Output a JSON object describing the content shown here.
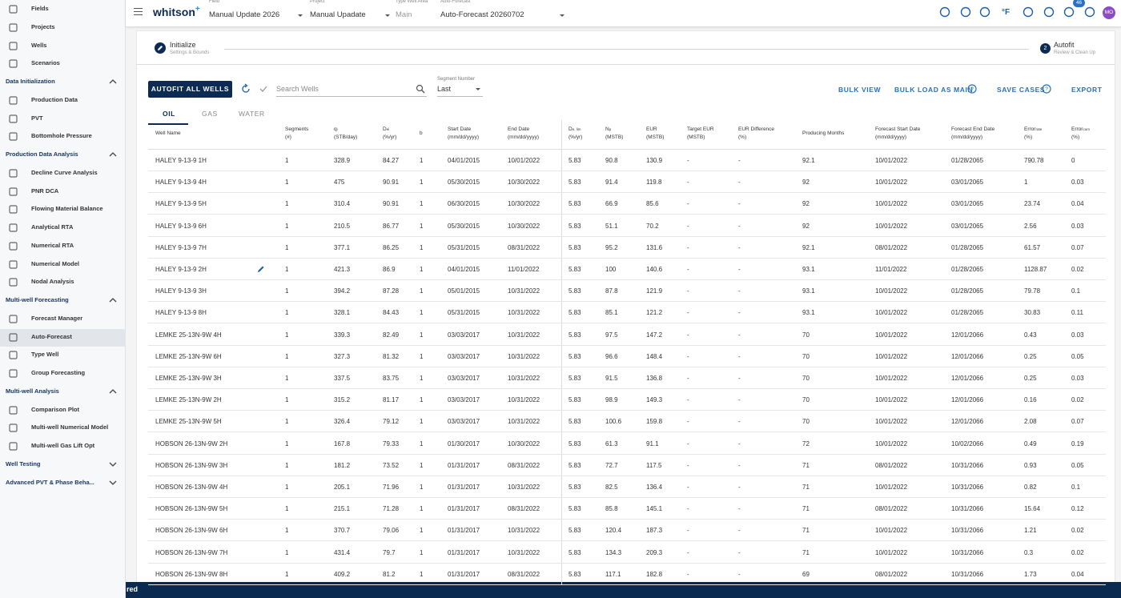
{
  "sidebar": {
    "top": [
      "Fields",
      "Projects",
      "Wells",
      "Scenarios"
    ],
    "sections": [
      {
        "title": "Data Initialization",
        "items": [
          "Production Data",
          "PVT",
          "Bottomhole Pressure"
        ]
      },
      {
        "title": "Production Data Analysis",
        "items": [
          "Decline Curve Analysis",
          "PNR DCA",
          "Flowing Material Balance",
          "Analytical RTA",
          "Numerical RTA",
          "Numerical Model",
          "Nodal Analysis"
        ]
      },
      {
        "title": "Multi-well Forecasting",
        "items": [
          "Forecast Manager",
          "Auto-Forecast",
          "Type Well",
          "Group Forecasting"
        ]
      },
      {
        "title": "Multi-well Analysis",
        "items": [
          "Comparison Plot",
          "Multi-well Numerical Model",
          "Multi-well Gas Lift Opt"
        ]
      },
      {
        "title": "Well Testing",
        "items": []
      },
      {
        "title": "Advanced PVT & Phase Beha...",
        "items": []
      }
    ]
  },
  "topbar": {
    "logo": {
      "name": "whitson",
      "mark": "+"
    },
    "selectors": [
      {
        "label": "Field",
        "value": "Manual Update 2026"
      },
      {
        "label": "Project",
        "value": "Manual Upadate"
      },
      {
        "label": "Type Well Area",
        "value": "Main"
      },
      {
        "label": "Auto-Forecast",
        "value": "Auto-Forecast 20260702"
      }
    ],
    "unit": "°F",
    "notifications": "46",
    "avatar": "MO"
  },
  "stepper": [
    {
      "title": "Initialize",
      "subtitle": "Settings & Bounds"
    },
    {
      "number": "2",
      "title": "Autofit",
      "subtitle": "Review & Clean Up"
    }
  ],
  "toolbar": {
    "autofit_button": "AUTOFIT ALL WELLS",
    "search_placeholder": "Search Wells",
    "segment": {
      "label": "Segment Number",
      "value": "Last"
    },
    "actions": [
      "BULK VIEW",
      "BULK LOAD AS MAIN",
      "SAVE CASES",
      "EXPORT"
    ]
  },
  "tabs": [
    "OIL",
    "GAS",
    "WATER"
  ],
  "table": {
    "columns": [
      {
        "name": "Well Name"
      },
      {
        "name": "Segments",
        "unit": "(#)"
      },
      {
        "name": "q",
        "sub": "i",
        "unit": "(STB/day)"
      },
      {
        "name": "D",
        "sub": "ei",
        "unit": "(%/yr)"
      },
      {
        "name": "b"
      },
      {
        "name": "Start Date",
        "unit": "(mm/dd/yyyy)"
      },
      {
        "name": "End Date",
        "unit": "(mm/dd/yyyy)"
      },
      {
        "name": "D",
        "sub": "e, lim",
        "unit": "(%/yr)"
      },
      {
        "name": "N",
        "sub": "p",
        "unit": "(MSTB)"
      },
      {
        "name": "EUR",
        "unit": "(MSTB)"
      },
      {
        "name": "Target EUR",
        "unit": "(MSTB)"
      },
      {
        "name": "EUR Difference",
        "unit": "(%)"
      },
      {
        "name": "Producing Months"
      },
      {
        "name": "Forecast Start Date",
        "unit": "(mm/dd/yyyy)"
      },
      {
        "name": "Forecast End Date",
        "unit": "(mm/dd/yyyy)"
      },
      {
        "name": "Error",
        "sub": "rate",
        "unit": "(%)"
      },
      {
        "name": "Error",
        "sub": "cum",
        "unit": "(%)"
      }
    ],
    "rows": [
      [
        "HALEY 9-13-9 1H",
        "1",
        "328.9",
        "84.27",
        "1",
        "04/01/2015",
        "10/01/2022",
        "5.83",
        "90.8",
        "130.9",
        "-",
        "-",
        "92.1",
        "10/01/2022",
        "01/28/2065",
        "790.78",
        "0"
      ],
      [
        "HALEY 9-13-9 4H",
        "1",
        "475",
        "90.91",
        "1",
        "05/30/2015",
        "10/30/2022",
        "5.83",
        "91.4",
        "119.8",
        "-",
        "-",
        "92",
        "10/01/2022",
        "03/01/2065",
        "1",
        "0.03"
      ],
      [
        "HALEY 9-13-9 5H",
        "1",
        "310.4",
        "90.91",
        "1",
        "06/30/2015",
        "10/30/2022",
        "5.83",
        "66.9",
        "85.6",
        "-",
        "-",
        "92",
        "10/01/2022",
        "03/01/2065",
        "23.74",
        "0.04"
      ],
      [
        "HALEY 9-13-9 6H",
        "1",
        "210.5",
        "86.77",
        "1",
        "05/30/2015",
        "10/30/2022",
        "5.83",
        "51.1",
        "70.2",
        "-",
        "-",
        "92",
        "10/01/2022",
        "03/01/2065",
        "2.56",
        "0.03"
      ],
      [
        "HALEY 9-13-9 7H",
        "1",
        "377.1",
        "86.25",
        "1",
        "05/31/2015",
        "08/31/2022",
        "5.83",
        "95.2",
        "131.6",
        "-",
        "-",
        "92.1",
        "08/01/2022",
        "01/28/2065",
        "61.57",
        "0.07"
      ],
      [
        "HALEY 9-13-9 2H",
        "1",
        "421.3",
        "86.9",
        "1",
        "04/01/2015",
        "11/01/2022",
        "5.83",
        "100",
        "140.6",
        "-",
        "-",
        "93.1",
        "11/01/2022",
        "01/28/2065",
        "1128.87",
        "0.02"
      ],
      [
        "HALEY 9-13-9 3H",
        "1",
        "394.2",
        "87.28",
        "1",
        "05/01/2015",
        "10/31/2022",
        "5.83",
        "87.8",
        "121.9",
        "-",
        "-",
        "93.1",
        "10/01/2022",
        "01/28/2065",
        "79.78",
        "0.1"
      ],
      [
        "HALEY 9-13-9 8H",
        "1",
        "328.1",
        "84.43",
        "1",
        "05/31/2015",
        "10/31/2022",
        "5.83",
        "85.1",
        "121.2",
        "-",
        "-",
        "93.1",
        "10/01/2022",
        "01/28/2065",
        "30.83",
        "0.11"
      ],
      [
        "LEMKE 25-13N-9W 4H",
        "1",
        "339.3",
        "82.49",
        "1",
        "03/03/2017",
        "10/31/2022",
        "5.83",
        "97.5",
        "147.2",
        "-",
        "-",
        "70",
        "10/01/2022",
        "12/01/2066",
        "0.43",
        "0.03"
      ],
      [
        "LEMKE 25-13N-9W 6H",
        "1",
        "327.3",
        "81.32",
        "1",
        "03/03/2017",
        "10/31/2022",
        "5.83",
        "96.6",
        "148.4",
        "-",
        "-",
        "70",
        "10/01/2022",
        "12/01/2066",
        "0.25",
        "0.05"
      ],
      [
        "LEMKE 25-13N-9W 3H",
        "1",
        "337.5",
        "83.75",
        "1",
        "03/03/2017",
        "10/31/2022",
        "5.83",
        "91.5",
        "136.8",
        "-",
        "-",
        "70",
        "10/01/2022",
        "12/01/2066",
        "0.25",
        "0.03"
      ],
      [
        "LEMKE 25-13N-9W 2H",
        "1",
        "315.2",
        "81.17",
        "1",
        "03/03/2017",
        "10/31/2022",
        "5.83",
        "98.9",
        "149.3",
        "-",
        "-",
        "70",
        "10/01/2022",
        "12/01/2066",
        "0.16",
        "0.02"
      ],
      [
        "LEMKE 25-13N-9W 5H",
        "1",
        "326.4",
        "79.12",
        "1",
        "03/03/2017",
        "10/31/2022",
        "5.83",
        "100.6",
        "159.8",
        "-",
        "-",
        "70",
        "10/01/2022",
        "12/01/2066",
        "2.08",
        "0.07"
      ],
      [
        "HOBSON 26-13N-9W 2H",
        "1",
        "167.8",
        "79.33",
        "1",
        "01/30/2017",
        "10/30/2022",
        "5.83",
        "61.3",
        "91.1",
        "-",
        "-",
        "72",
        "10/01/2022",
        "10/02/2066",
        "0.49",
        "0.19"
      ],
      [
        "HOBSON 26-13N-9W 3H",
        "1",
        "181.2",
        "73.52",
        "1",
        "01/31/2017",
        "08/31/2022",
        "5.83",
        "72.7",
        "117.5",
        "-",
        "-",
        "71",
        "08/01/2022",
        "10/31/2066",
        "0.93",
        "0.05"
      ],
      [
        "HOBSON 26-13N-9W 4H",
        "1",
        "205.1",
        "71.96",
        "1",
        "01/31/2017",
        "10/31/2022",
        "5.83",
        "82.5",
        "136.4",
        "-",
        "-",
        "71",
        "10/01/2022",
        "10/31/2066",
        "0.82",
        "0.1"
      ],
      [
        "HOBSON 26-13N-9W 5H",
        "1",
        "215.1",
        "71.28",
        "1",
        "01/31/2017",
        "08/31/2022",
        "5.83",
        "85.8",
        "145.1",
        "-",
        "-",
        "71",
        "08/01/2022",
        "10/31/2066",
        "15.64",
        "0.12"
      ],
      [
        "HOBSON 26-13N-9W 6H",
        "1",
        "370.7",
        "79.06",
        "1",
        "01/31/2017",
        "10/31/2022",
        "5.83",
        "120.4",
        "187.3",
        "-",
        "-",
        "71",
        "10/01/2022",
        "10/31/2066",
        "1.21",
        "0.02"
      ],
      [
        "HOBSON 26-13N-9W 7H",
        "1",
        "431.4",
        "79.7",
        "1",
        "01/31/2017",
        "10/31/2022",
        "5.83",
        "134.3",
        "209.3",
        "-",
        "-",
        "71",
        "10/01/2022",
        "10/31/2066",
        "0.3",
        "0.02"
      ],
      [
        "HOBSON 26-13N-9W 8H",
        "1",
        "409.2",
        "81.2",
        "1",
        "01/31/2017",
        "08/31/2022",
        "5.83",
        "117.1",
        "182.8",
        "-",
        "-",
        "69",
        "08/01/2022",
        "10/31/2066",
        "1.73",
        "0.04"
      ]
    ]
  },
  "status": "red"
}
